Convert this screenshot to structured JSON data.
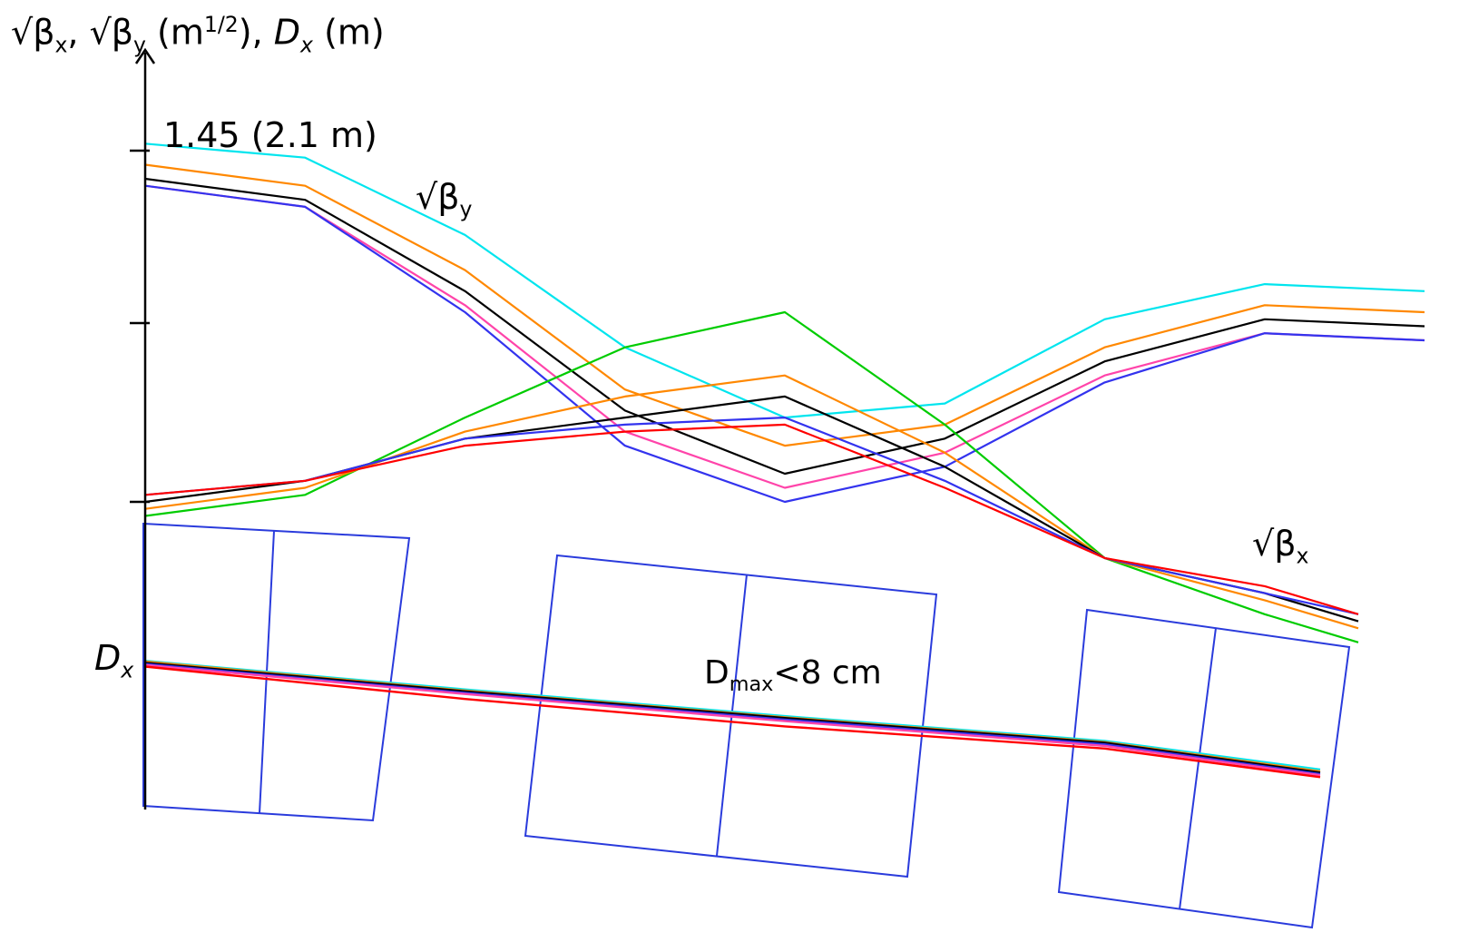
{
  "chart_data": {
    "type": "line",
    "ylabel": {
      "part1": "√β",
      "sub1": "x",
      "sep": ", √β",
      "sub2": "y",
      "part2": " (m",
      "sup": "1/2",
      "part3": "), ",
      "dvar": "D",
      "dsub": "x",
      "part4": " (m)"
    },
    "ytick_label": "1.45 (2.1 m)",
    "annotations": {
      "beta_y": {
        "base": "√β",
        "sub": "y"
      },
      "beta_x": {
        "base": "√β",
        "sub": "x"
      },
      "dx": {
        "base": "D",
        "sub": "x"
      },
      "dmax": {
        "base": "D",
        "sub": "max",
        "rest": "<8 cm"
      }
    },
    "x": [
      0,
      1,
      2,
      3,
      4,
      5,
      6,
      7,
      8
    ],
    "beta_y_series": [
      {
        "color": "#00e5ee",
        "values": [
          1.46,
          1.44,
          1.33,
          1.17,
          1.07,
          1.09,
          1.21,
          1.26,
          1.25
        ]
      },
      {
        "color": "#ff8800",
        "values": [
          1.43,
          1.4,
          1.28,
          1.11,
          1.03,
          1.06,
          1.17,
          1.23,
          1.22
        ]
      },
      {
        "color": "#000000",
        "values": [
          1.41,
          1.38,
          1.25,
          1.08,
          0.99,
          1.04,
          1.15,
          1.21,
          1.2
        ]
      },
      {
        "color": "#ff44aa",
        "values": [
          1.4,
          1.37,
          1.23,
          1.05,
          0.97,
          1.02,
          1.13,
          1.19,
          1.18
        ]
      },
      {
        "color": "#3333ee",
        "values": [
          1.4,
          1.37,
          1.22,
          1.03,
          0.95,
          1.0,
          1.12,
          1.19,
          1.18
        ]
      }
    ],
    "beta_x_series": [
      {
        "color": "#00cc00",
        "values": [
          0.93,
          0.96,
          1.07,
          1.17,
          1.22,
          1.06,
          0.87,
          0.79,
          0.75
        ]
      },
      {
        "color": "#ff8800",
        "values": [
          0.94,
          0.97,
          1.05,
          1.1,
          1.13,
          1.02,
          0.87,
          0.81,
          0.77
        ]
      },
      {
        "color": "#000000",
        "values": [
          0.95,
          0.98,
          1.04,
          1.07,
          1.1,
          1.0,
          0.87,
          0.82,
          0.78
        ]
      },
      {
        "color": "#3333ee",
        "values": [
          0.96,
          0.98,
          1.04,
          1.06,
          1.07,
          0.98,
          0.87,
          0.82,
          0.79
        ]
      },
      {
        "color": "#ff0000",
        "values": [
          0.96,
          0.98,
          1.03,
          1.05,
          1.06,
          0.97,
          0.87,
          0.83,
          0.79
        ]
      }
    ],
    "dx_series": [
      {
        "color": "#00e5ee",
        "values": [
          0.79,
          0.715,
          0.645,
          0.58,
          0.505
        ]
      },
      {
        "color": "#ff8800",
        "values": [
          0.788,
          0.712,
          0.642,
          0.577,
          0.5
        ]
      },
      {
        "color": "#000000",
        "values": [
          0.785,
          0.71,
          0.64,
          0.575,
          0.497
        ]
      },
      {
        "color": "#3333ee",
        "values": [
          0.782,
          0.706,
          0.636,
          0.571,
          0.493
        ]
      },
      {
        "color": "#ff44aa",
        "values": [
          0.779,
          0.703,
          0.632,
          0.567,
          0.49
        ]
      },
      {
        "color": "#ff0000",
        "values": [
          0.775,
          0.69,
          0.618,
          0.56,
          0.485
        ]
      }
    ],
    "dx_x": [
      0,
      2,
      4,
      6,
      8
    ],
    "magnets": [
      {
        "name": "left",
        "points": [
          [
            158,
            577
          ],
          [
            451,
            593
          ],
          [
            411,
            904
          ],
          [
            158,
            888
          ]
        ],
        "divider": [
          [
            302,
            585
          ],
          [
            286,
            896
          ]
        ]
      },
      {
        "name": "middle",
        "points": [
          [
            614,
            612
          ],
          [
            1032,
            655
          ],
          [
            1000,
            966
          ],
          [
            579,
            921
          ]
        ],
        "divider": [
          [
            823,
            633
          ],
          [
            790,
            943
          ]
        ]
      },
      {
        "name": "right",
        "points": [
          [
            1198,
            672
          ],
          [
            1487,
            713
          ],
          [
            1446,
            1022
          ],
          [
            1167,
            983
          ]
        ],
        "divider": [
          [
            1340,
            692
          ],
          [
            1300,
            1002
          ]
        ]
      }
    ]
  }
}
